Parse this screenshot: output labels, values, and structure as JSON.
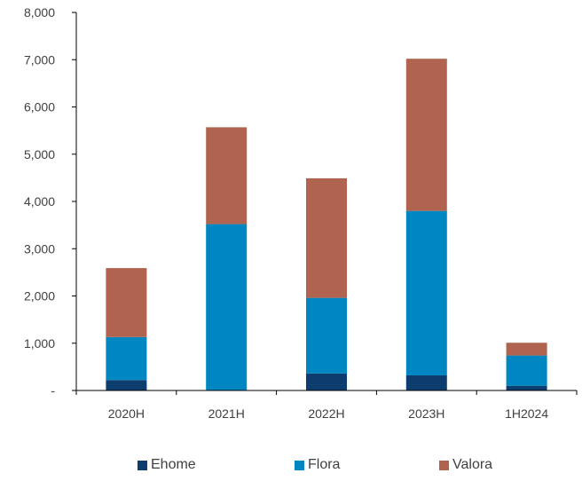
{
  "chart_data": {
    "type": "bar",
    "stacked": true,
    "categories": [
      "2020H",
      "2021H",
      "2022H",
      "2023H",
      "1H2024"
    ],
    "series": [
      {
        "name": "Ehome",
        "color": "#0d3d6e",
        "values": [
          220,
          0,
          360,
          320,
          100
        ]
      },
      {
        "name": "Flora",
        "color": "#0087c1",
        "values": [
          910,
          3520,
          1600,
          3480,
          640
        ]
      },
      {
        "name": "Valora",
        "color": "#b0644f",
        "values": [
          1460,
          2050,
          2530,
          3220,
          270
        ]
      }
    ],
    "ylim": [
      0,
      8000
    ],
    "y_ticks": [
      0,
      1000,
      2000,
      3000,
      4000,
      5000,
      6000,
      7000,
      8000
    ],
    "y_tick_labels": [
      "-",
      "1,000",
      "2,000",
      "3,000",
      "4,000",
      "5,000",
      "6,000",
      "7,000",
      "8,000"
    ],
    "grid": false,
    "legend_position": "bottom"
  }
}
